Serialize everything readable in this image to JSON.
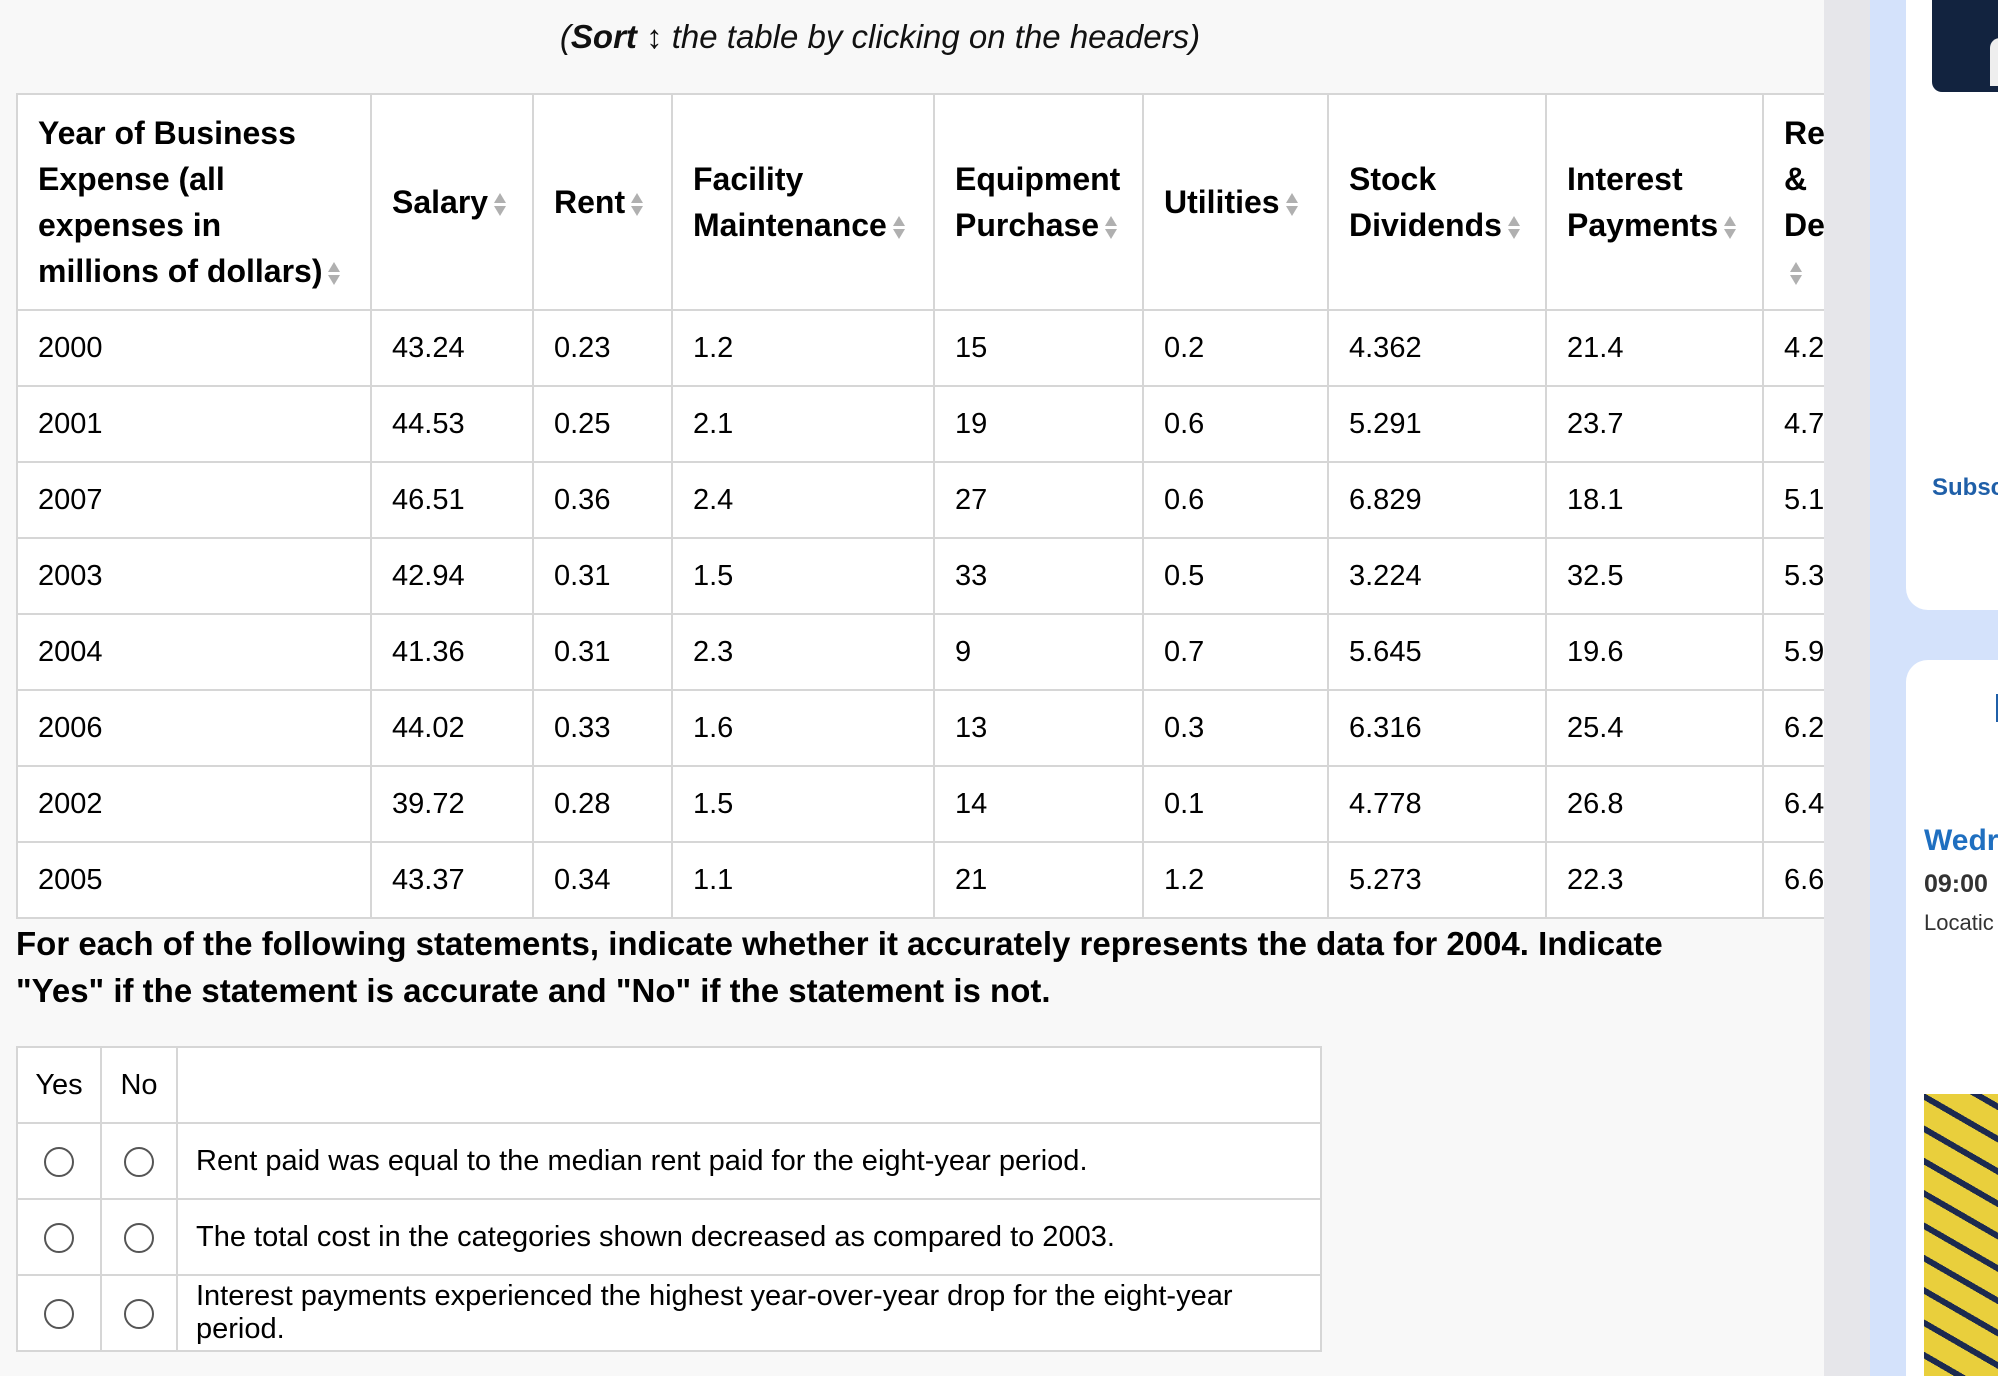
{
  "hint": {
    "open": "(",
    "sort_word": "Sort",
    "sort_glyph": " ↕",
    "rest": " the table by clicking on the headers)"
  },
  "table": {
    "headers": [
      "Year of Business Expense (all expenses in millions of dollars)",
      "Salary",
      "Rent",
      "Facility Maintenance",
      "Equipment Purchase",
      "Utilities",
      "Stock Dividends",
      "Interest Payments",
      "Research & Development"
    ],
    "rows": [
      [
        "2000",
        "43.24",
        "0.23",
        "1.2",
        "15",
        "0.2",
        "4.362",
        "21.4",
        "4.2"
      ],
      [
        "2001",
        "44.53",
        "0.25",
        "2.1",
        "19",
        "0.6",
        "5.291",
        "23.7",
        "4.7"
      ],
      [
        "2007",
        "46.51",
        "0.36",
        "2.4",
        "27",
        "0.6",
        "6.829",
        "18.1",
        "5.1"
      ],
      [
        "2003",
        "42.94",
        "0.31",
        "1.5",
        "33",
        "0.5",
        "3.224",
        "32.5",
        "5.3"
      ],
      [
        "2004",
        "41.36",
        "0.31",
        "2.3",
        "9",
        "0.7",
        "5.645",
        "19.6",
        "5.9"
      ],
      [
        "2006",
        "44.02",
        "0.33",
        "1.6",
        "13",
        "0.3",
        "6.316",
        "25.4",
        "6.2"
      ],
      [
        "2002",
        "39.72",
        "0.28",
        "1.5",
        "14",
        "0.1",
        "4.778",
        "26.8",
        "6.4"
      ],
      [
        "2005",
        "43.37",
        "0.34",
        "1.1",
        "21",
        "1.2",
        "5.273",
        "22.3",
        "6.6"
      ]
    ]
  },
  "instructions": "For each of the following statements, indicate whether it accurately represents the data for 2004. Indicate \"Yes\" if the statement is accurate and \"No\" if the statement is not.",
  "question": {
    "yes_label": "Yes",
    "no_label": "No",
    "statements": [
      "Rent paid was equal to the median rent paid for the eight-year period.",
      "The total cost in the categories shown decreased as compared to 2003.",
      "Interest payments experienced the highest year-over-year drop for the eight-year period."
    ]
  },
  "sidebar": {
    "subscribe": "Subsc",
    "event_day": "Wedr",
    "event_time": "09:00",
    "event_location": "Locatic"
  }
}
